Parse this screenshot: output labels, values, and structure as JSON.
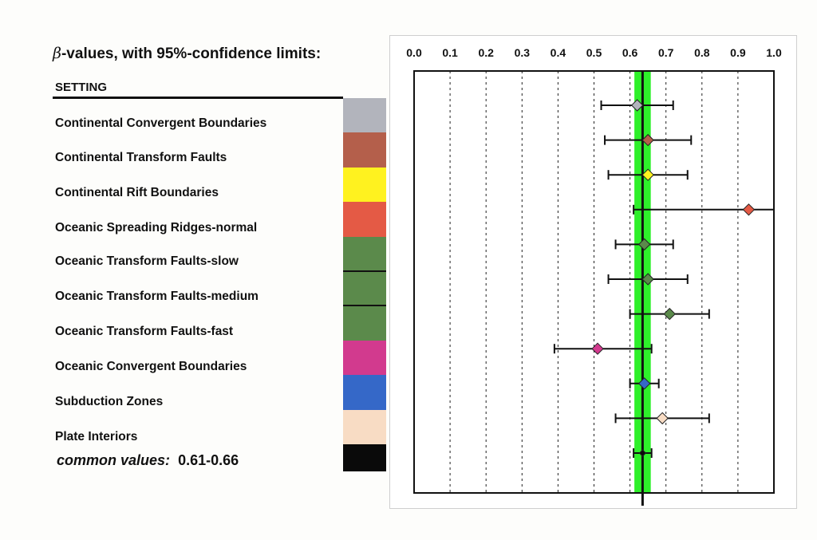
{
  "title": {
    "symbol": "β",
    "text": "-values, with 95%-confidence limits:"
  },
  "setting_header": "SETTING",
  "common": {
    "label": "common values:",
    "range": "0.61-0.66"
  },
  "chart_data": {
    "type": "scatter",
    "subtype": "forest-plot",
    "orientation": "horizontal",
    "xlim": [
      0.0,
      1.0
    ],
    "x_ticks": [
      0.0,
      0.1,
      0.2,
      0.3,
      0.4,
      0.5,
      0.6,
      0.7,
      0.8,
      0.9,
      1.0
    ],
    "x_tick_labels": [
      "0.0",
      "0.1",
      "0.2",
      "0.3",
      "0.4",
      "0.5",
      "0.6",
      "0.7",
      "0.8",
      "0.9",
      "1.0"
    ],
    "x_axis_position": "top",
    "grid": "dotted vertical",
    "common_band": {
      "low": 0.61,
      "high": 0.66,
      "center": 0.635,
      "color": "#2ef02a"
    },
    "rows": [
      {
        "label": "Continental Convergent Boundaries",
        "color": "#b2b4bc",
        "value": 0.62,
        "low": 0.52,
        "high": 0.72
      },
      {
        "label": "Continental Transform Faults",
        "color": "#b45f4b",
        "value": 0.65,
        "low": 0.53,
        "high": 0.77
      },
      {
        "label": "Continental Rift Boundaries",
        "color": "#fff21f",
        "value": 0.65,
        "low": 0.54,
        "high": 0.76
      },
      {
        "label": "Oceanic Spreading Ridges-normal",
        "color": "#e45a45",
        "value": 0.93,
        "low": 0.61,
        "high": 1.0
      },
      {
        "label": "Oceanic Transform Faults-slow",
        "color": "#5b8a4b",
        "value": 0.64,
        "low": 0.56,
        "high": 0.72
      },
      {
        "label": "Oceanic Transform Faults-medium",
        "color": "#5b8a4b",
        "value": 0.65,
        "low": 0.54,
        "high": 0.76
      },
      {
        "label": "Oceanic Transform Faults-fast",
        "color": "#5b8a4b",
        "value": 0.71,
        "low": 0.6,
        "high": 0.82
      },
      {
        "label": "Oceanic Convergent Boundaries",
        "color": "#d23a8e",
        "value": 0.51,
        "low": 0.39,
        "high": 0.66
      },
      {
        "label": "Subduction Zones",
        "color": "#3568c8",
        "value": 0.64,
        "low": 0.6,
        "high": 0.68
      },
      {
        "label": "Plate Interiors",
        "color": "#f8dcc4",
        "value": 0.69,
        "low": 0.56,
        "high": 0.82
      },
      {
        "label": "common values",
        "color": "#0a0a0a",
        "value": 0.635,
        "low": 0.61,
        "high": 0.66
      }
    ]
  }
}
